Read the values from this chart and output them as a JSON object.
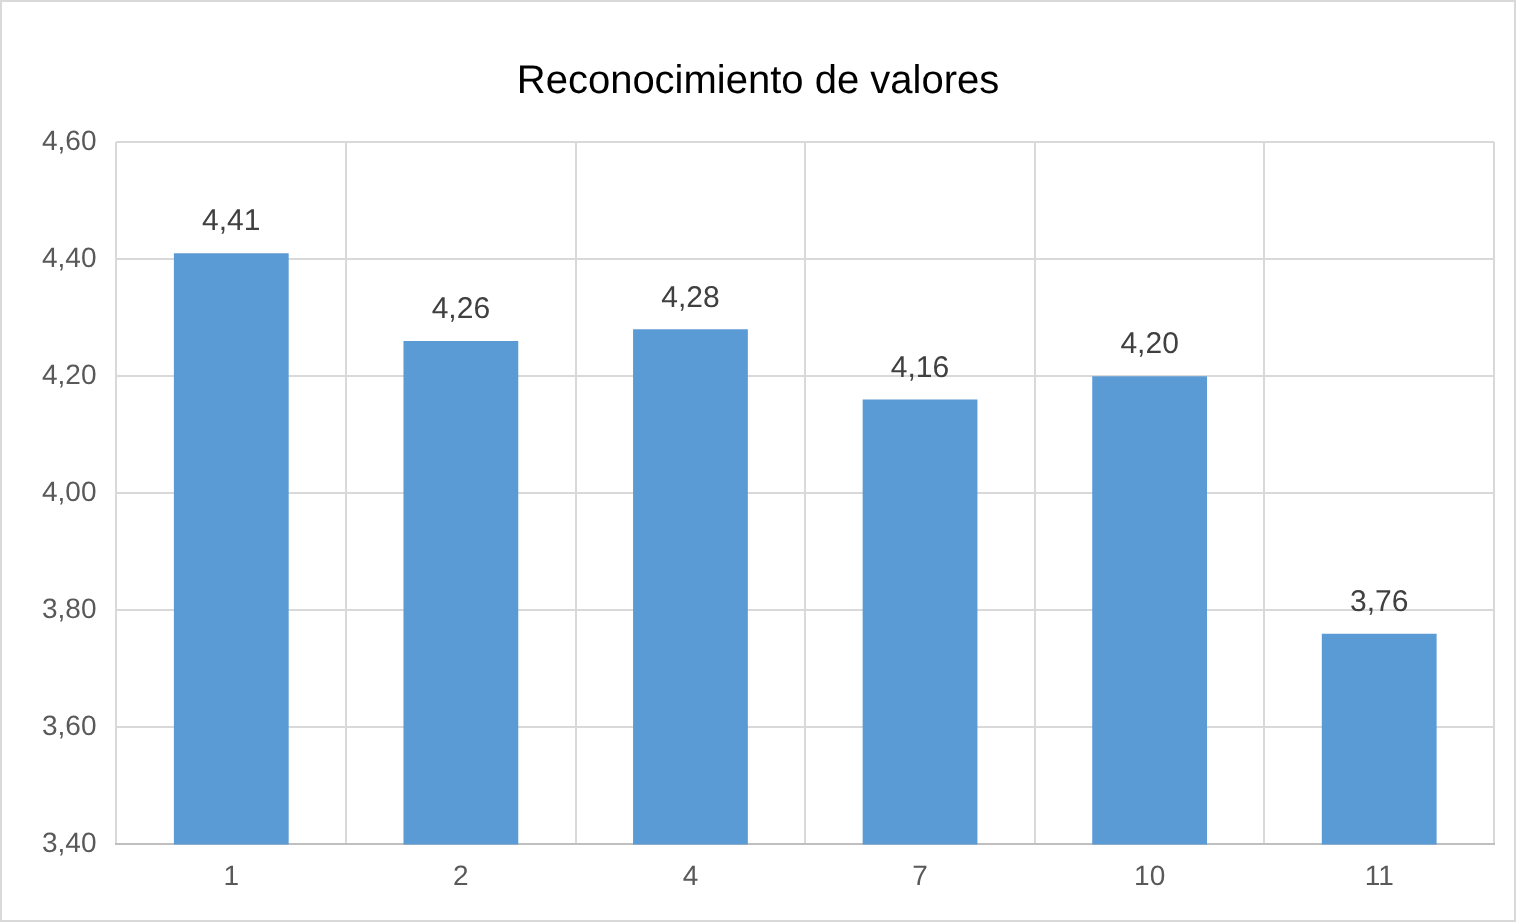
{
  "chart_data": {
    "type": "bar",
    "title": "Reconocimiento de valores",
    "categories": [
      "1",
      "2",
      "4",
      "7",
      "10",
      "11"
    ],
    "values": [
      4.41,
      4.26,
      4.28,
      4.16,
      4.2,
      3.76
    ],
    "value_labels": [
      "4,41",
      "4,26",
      "4,28",
      "4,16",
      "4,20",
      "3,76"
    ],
    "color": "#5b9bd5",
    "ylim": [
      3.4,
      4.6
    ],
    "yticks": [
      {
        "value": 3.4,
        "label": "3,40"
      },
      {
        "value": 3.6,
        "label": "3,60"
      },
      {
        "value": 3.8,
        "label": "3,80"
      },
      {
        "value": 4.0,
        "label": "4,00"
      },
      {
        "value": 4.2,
        "label": "4,20"
      },
      {
        "value": 4.4,
        "label": "4,40"
      },
      {
        "value": 4.6,
        "label": "4,60"
      }
    ],
    "grid": true,
    "legend": false
  }
}
